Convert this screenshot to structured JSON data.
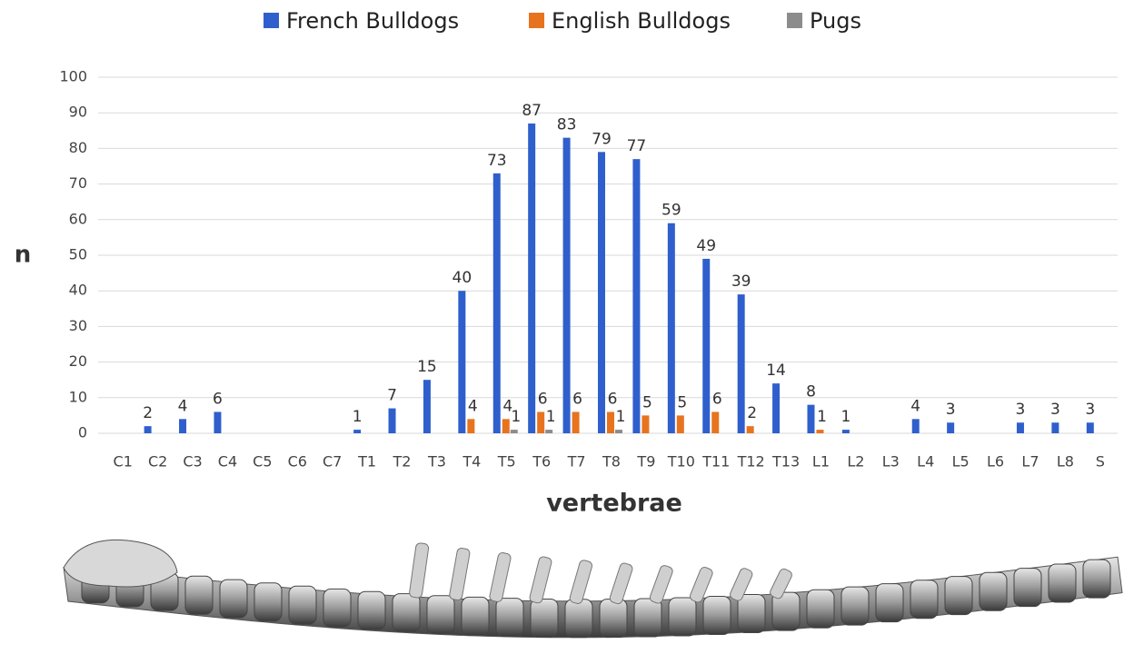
{
  "chart_data": {
    "type": "bar",
    "x_label": "vertebrae",
    "y_label": "n",
    "categories": [
      "C1",
      "C2",
      "C3",
      "C4",
      "C5",
      "C6",
      "C7",
      "T1",
      "T2",
      "T3",
      "T4",
      "T5",
      "T6",
      "T7",
      "T8",
      "T9",
      "T10",
      "T11",
      "T12",
      "T13",
      "L1",
      "L2",
      "L3",
      "L4",
      "L5",
      "L6",
      "L7",
      "L8",
      "S"
    ],
    "series": [
      {
        "name": "French Bulldogs",
        "color": "#2f5fcc",
        "values": [
          null,
          2,
          4,
          6,
          null,
          null,
          null,
          1,
          7,
          15,
          40,
          73,
          87,
          83,
          79,
          77,
          59,
          49,
          39,
          14,
          8,
          1,
          null,
          4,
          3,
          null,
          3,
          3,
          3
        ]
      },
      {
        "name": "English Bulldogs",
        "color": "#e8731f",
        "values": [
          null,
          null,
          null,
          null,
          null,
          null,
          null,
          null,
          null,
          null,
          4,
          4,
          6,
          6,
          6,
          5,
          5,
          6,
          2,
          null,
          1,
          null,
          null,
          null,
          null,
          null,
          null,
          null,
          null
        ]
      },
      {
        "name": "Pugs",
        "color": "#8c8c8c",
        "values": [
          null,
          null,
          null,
          null,
          null,
          null,
          null,
          null,
          null,
          null,
          null,
          1,
          1,
          null,
          1,
          null,
          null,
          null,
          null,
          null,
          null,
          null,
          null,
          null,
          null,
          null,
          null,
          null,
          null
        ]
      }
    ],
    "ylim": [
      0,
      100
    ],
    "yticks": [
      0,
      10,
      20,
      30,
      40,
      50,
      60,
      70,
      80,
      90,
      100
    ],
    "grid": true,
    "legend": "top"
  }
}
